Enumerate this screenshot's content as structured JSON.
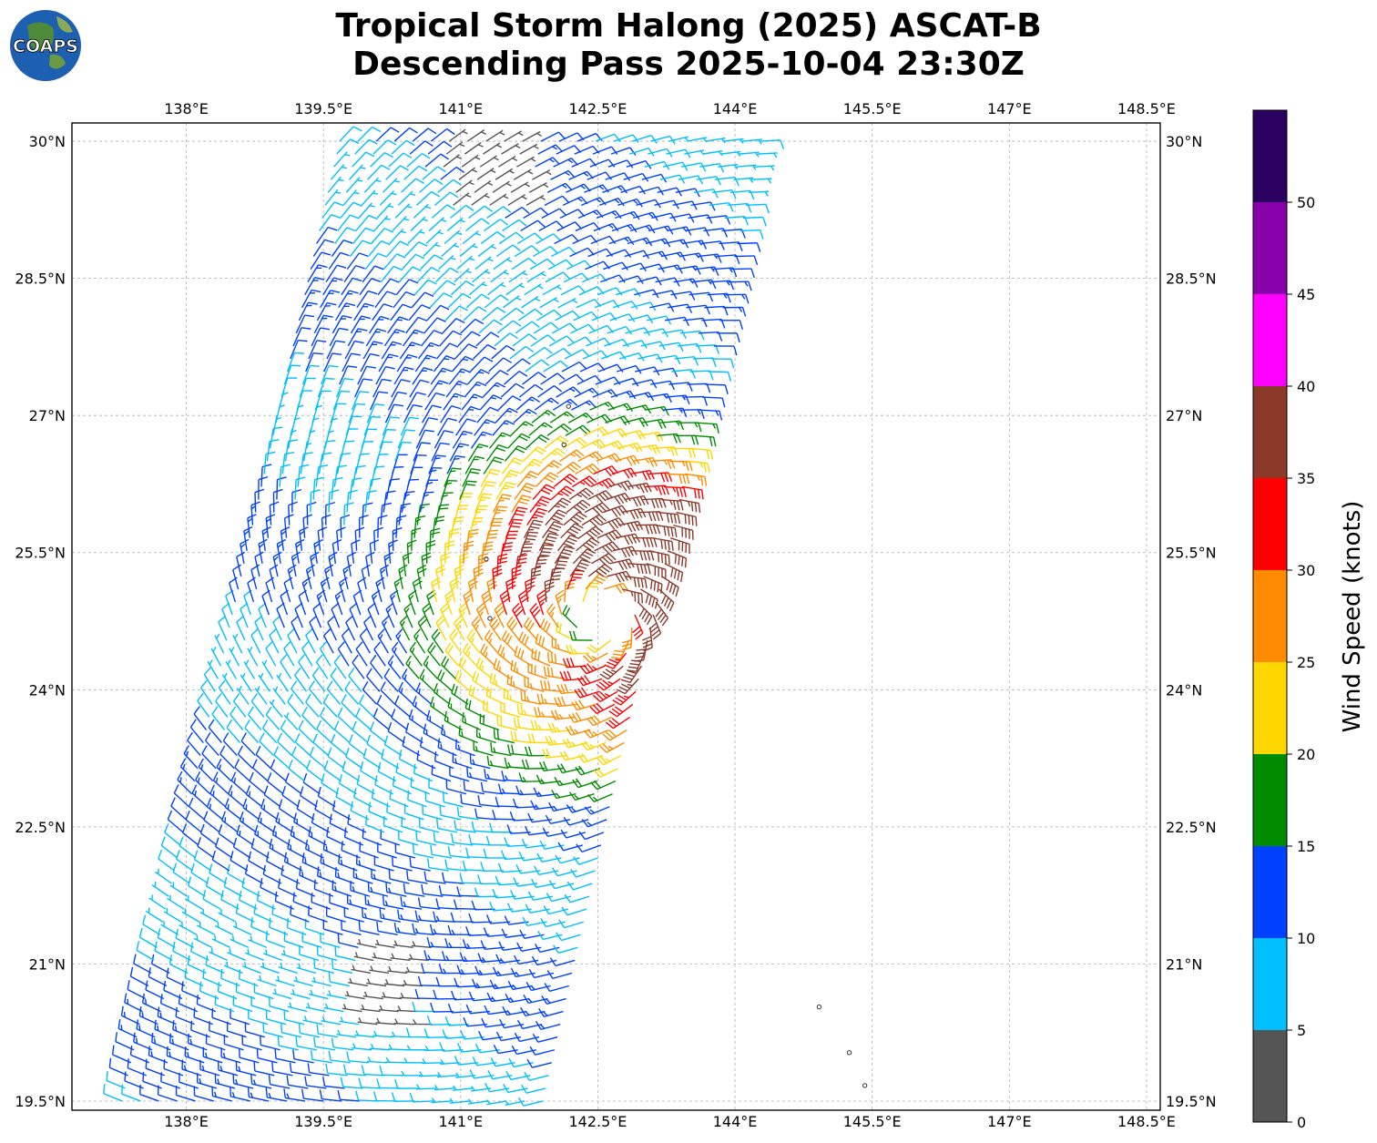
{
  "title_line1": "Tropical Storm Halong (2025) ASCAT-B",
  "title_line2": "Descending Pass 2025-10-04 23:30Z",
  "logo_text": "COAPS",
  "chart_data": {
    "type": "wind_barb_map",
    "x_ticks": [
      "138°E",
      "139.5°E",
      "141°E",
      "142.5°E",
      "144°E",
      "145.5°E",
      "147°E",
      "148.5°E"
    ],
    "x_tick_values": [
      138,
      139.5,
      141,
      142.5,
      144,
      145.5,
      147,
      148.5
    ],
    "y_ticks": [
      "30°N",
      "28.5°N",
      "27°N",
      "25.5°N",
      "24°N",
      "22.5°N",
      "21°N",
      "19.5°N"
    ],
    "y_tick_values": [
      30,
      28.5,
      27,
      25.5,
      24,
      22.5,
      21,
      19.5
    ],
    "xlim": [
      136.75,
      148.65
    ],
    "ylim": [
      19.4,
      30.2
    ],
    "grid": true,
    "storm_center": {
      "lon": 142.55,
      "lat": 24.8
    },
    "swath": {
      "lon_left_at_south": 137.3,
      "lon_left_at_north": 139.7,
      "width_deg": 4.7
    },
    "islands": [
      {
        "lon": 141.28,
        "lat": 25.43
      },
      {
        "lon": 141.32,
        "lat": 24.78
      },
      {
        "lon": 142.18,
        "lat": 27.1
      },
      {
        "lon": 142.13,
        "lat": 26.68
      },
      {
        "lon": 144.92,
        "lat": 20.53
      },
      {
        "lon": 145.25,
        "lat": 20.03
      },
      {
        "lon": 145.42,
        "lat": 19.67
      }
    ],
    "colorbar": {
      "label": "Wind Speed (knots)",
      "ticks": [
        0,
        5,
        10,
        15,
        20,
        25,
        30,
        35,
        40,
        45,
        50
      ],
      "bins": [
        0,
        5,
        10,
        15,
        20,
        25,
        30,
        35,
        40,
        45,
        50,
        55
      ],
      "colors": [
        "#555555",
        "#00bfff",
        "#0040ff",
        "#008c00",
        "#ffd700",
        "#ff8c00",
        "#ff0000",
        "#8b3a2a",
        "#ff00ff",
        "#8800aa",
        "#2a0060"
      ]
    }
  }
}
